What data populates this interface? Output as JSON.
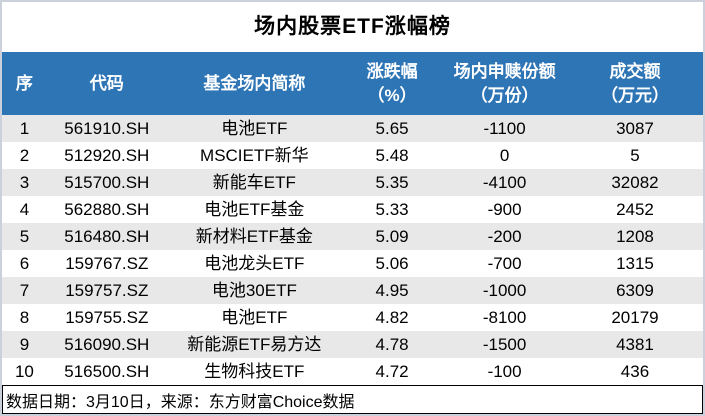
{
  "title": "场内股票ETF涨幅榜",
  "colors": {
    "header_bg": "#2e75b6",
    "header_text": "#ffffff",
    "stripe_bg": "#e8e8e8",
    "frame_border": "#cbd0db",
    "footer_border": "#000000"
  },
  "chart_data": {
    "type": "table",
    "title": "场内股票ETF涨幅榜",
    "columns": [
      {
        "key": "rank",
        "label": "序",
        "width": "6.4%"
      },
      {
        "key": "code",
        "label": "代码",
        "width": "17.1%"
      },
      {
        "key": "name",
        "label": "基金场内简称",
        "width": "25%"
      },
      {
        "key": "change",
        "label": "涨跌幅\n（%）",
        "width": "14.3%"
      },
      {
        "key": "shares",
        "label": "场内申赎份额\n（万份）",
        "width": "17.8%"
      },
      {
        "key": "turnover",
        "label": "成交额\n（万元）",
        "width": "19.4%"
      }
    ],
    "rows": [
      [
        "1",
        "561910.SH",
        "电池ETF",
        "5.65",
        "-1100",
        "3087"
      ],
      [
        "2",
        "512920.SH",
        "MSCIETF新华",
        "5.48",
        "0",
        "5"
      ],
      [
        "3",
        "515700.SH",
        "新能车ETF",
        "5.35",
        "-4100",
        "32082"
      ],
      [
        "4",
        "562880.SH",
        "电池ETF基金",
        "5.33",
        "-900",
        "2452"
      ],
      [
        "5",
        "516480.SH",
        "新材料ETF基金",
        "5.09",
        "-200",
        "1208"
      ],
      [
        "6",
        "159767.SZ",
        "电池龙头ETF",
        "5.06",
        "-700",
        "1315"
      ],
      [
        "7",
        "159757.SZ",
        "电池30ETF",
        "4.95",
        "-1000",
        "6309"
      ],
      [
        "8",
        "159755.SZ",
        "电池ETF",
        "4.82",
        "-8100",
        "20179"
      ],
      [
        "9",
        "516090.SH",
        "新能源ETF易方达",
        "4.78",
        "-1500",
        "4381"
      ],
      [
        "10",
        "516500.SH",
        "生物科技ETF",
        "4.72",
        "-100",
        "436"
      ]
    ]
  },
  "footer": {
    "text": "数据日期：3月10日，来源：东方财富Choice数据"
  }
}
